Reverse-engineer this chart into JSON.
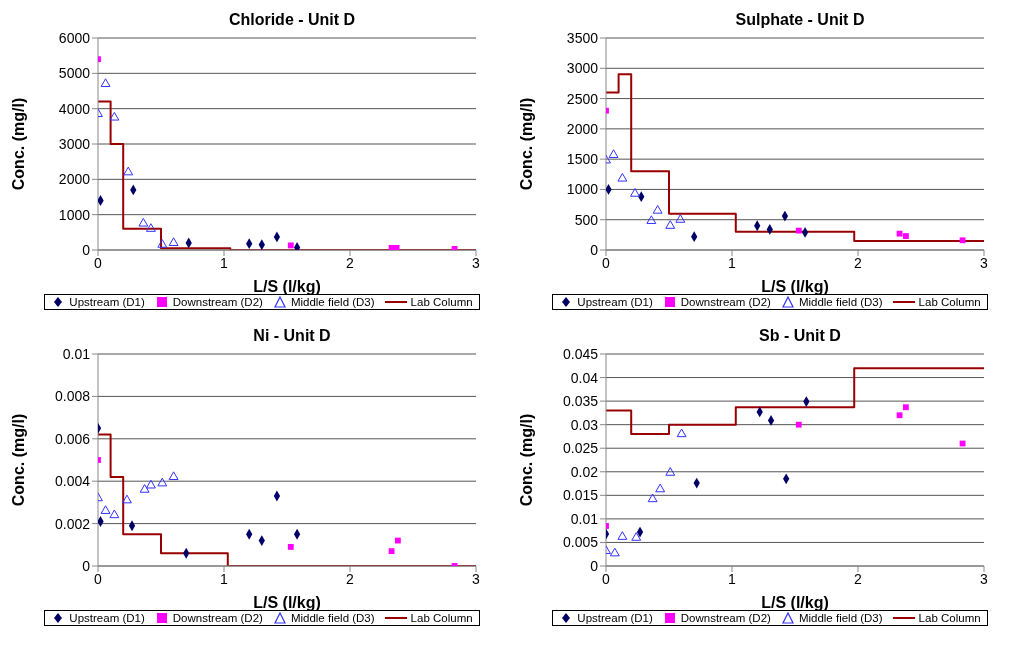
{
  "chart_data": [
    {
      "type": "scatter",
      "title": "Chloride - Unit D",
      "xlabel": "L/S (l/kg)",
      "ylabel": "Conc. (mg/l)",
      "xlim": [
        0,
        3
      ],
      "xticks": [
        0,
        1,
        2,
        3
      ],
      "ylim": [
        0,
        6000
      ],
      "yticks": [
        0,
        1000,
        2000,
        3000,
        4000,
        5000,
        6000
      ],
      "grid": "y",
      "legend": "bottom",
      "series": [
        {
          "name": "Upstream (D1)",
          "marker": "diamond",
          "color": "#000066",
          "x": [
            0.02,
            0.28,
            0.72,
            1.2,
            1.3,
            1.42,
            1.58
          ],
          "values": [
            1400,
            1700,
            200,
            180,
            150,
            370,
            70
          ]
        },
        {
          "name": "Downstream (D2)",
          "marker": "square",
          "color": "#ff00ff",
          "x": [
            0,
            1.53,
            2.33,
            2.37,
            2.83
          ],
          "values": [
            5400,
            130,
            60,
            60,
            30
          ]
        },
        {
          "name": "Middle field (D3)",
          "marker": "triangle",
          "color": "#3333ff",
          "x": [
            0,
            0.06,
            0.13,
            0.24,
            0.36,
            0.42,
            0.51,
            0.6
          ],
          "values": [
            3850,
            4700,
            3750,
            2200,
            750,
            600,
            150,
            200
          ]
        },
        {
          "name": "Lab Column",
          "type": "step",
          "marker": "none",
          "color": "#990000",
          "x": [
            0,
            0.1,
            0.2,
            0.5,
            1.05,
            3
          ],
          "values": [
            4200,
            3000,
            600,
            50,
            0,
            0
          ]
        }
      ]
    },
    {
      "type": "scatter",
      "title": "Sulphate - Unit D",
      "xlabel": "L/S (l/kg)",
      "ylabel": "Conc. (mg/l)",
      "xlim": [
        0,
        3
      ],
      "xticks": [
        0,
        1,
        2,
        3
      ],
      "ylim": [
        0,
        3500
      ],
      "yticks": [
        0,
        500,
        1000,
        1500,
        2000,
        2500,
        3000,
        3500
      ],
      "grid": "y",
      "legend": "bottom",
      "series": [
        {
          "name": "Upstream (D1)",
          "marker": "diamond",
          "color": "#000066",
          "x": [
            0.02,
            0.28,
            0.7,
            1.2,
            1.3,
            1.42,
            1.58
          ],
          "values": [
            1000,
            880,
            220,
            400,
            340,
            560,
            290
          ]
        },
        {
          "name": "Downstream (D2)",
          "marker": "square",
          "color": "#ff00ff",
          "x": [
            0,
            1.53,
            2.33,
            2.38,
            2.83
          ],
          "values": [
            2300,
            320,
            270,
            230,
            160
          ]
        },
        {
          "name": "Middle field (D3)",
          "marker": "triangle",
          "color": "#3333ff",
          "x": [
            0,
            0.06,
            0.13,
            0.23,
            0.36,
            0.41,
            0.51,
            0.59
          ],
          "values": [
            1480,
            1570,
            1180,
            930,
            480,
            650,
            400,
            500
          ]
        },
        {
          "name": "Lab Column",
          "type": "step",
          "marker": "none",
          "color": "#990000",
          "x": [
            0,
            0.1,
            0.2,
            0.5,
            1.03,
            1.97,
            3
          ],
          "values": [
            2600,
            2900,
            1300,
            600,
            300,
            150,
            150
          ]
        }
      ]
    },
    {
      "type": "scatter",
      "title": "Ni - Unit D",
      "xlabel": "L/S (l/kg)",
      "ylabel": "Conc. (mg/l)",
      "xlim": [
        0,
        3
      ],
      "xticks": [
        0,
        1,
        2,
        3
      ],
      "ylim": [
        0,
        0.01
      ],
      "yticks": [
        0,
        0.002,
        0.004,
        0.006,
        0.008,
        0.01
      ],
      "grid": "y",
      "legend": "bottom",
      "series": [
        {
          "name": "Upstream (D1)",
          "marker": "diamond",
          "color": "#000066",
          "x": [
            0,
            0.02,
            0.27,
            0.7,
            1.2,
            1.3,
            1.42,
            1.58
          ],
          "values": [
            0.0065,
            0.0021,
            0.0019,
            0.0006,
            0.0015,
            0.0012,
            0.0033,
            0.0015
          ]
        },
        {
          "name": "Downstream (D2)",
          "marker": "square",
          "color": "#ff00ff",
          "x": [
            0,
            1.53,
            2.33,
            2.38,
            2.83
          ],
          "values": [
            0.005,
            0.0009,
            0.0007,
            0.0012,
            0
          ]
        },
        {
          "name": "Middle field (D3)",
          "marker": "triangle",
          "color": "#3333ff",
          "x": [
            0,
            0.06,
            0.13,
            0.23,
            0.37,
            0.42,
            0.51,
            0.6
          ],
          "values": [
            0.0032,
            0.0026,
            0.0024,
            0.0031,
            0.0036,
            0.0038,
            0.0039,
            0.0042
          ]
        },
        {
          "name": "Lab Column",
          "type": "step",
          "marker": "none",
          "color": "#990000",
          "x": [
            0,
            0.1,
            0.2,
            0.5,
            1.03,
            3
          ],
          "values": [
            0.0062,
            0.0042,
            0.0015,
            0.0006,
            0,
            0
          ]
        }
      ]
    },
    {
      "type": "scatter",
      "title": "Sb - Unit D",
      "xlabel": "L/S (l/kg)",
      "ylabel": "Conc. (mg/l)",
      "xlim": [
        0,
        3
      ],
      "xticks": [
        0,
        1,
        2,
        3
      ],
      "ylim": [
        0,
        0.045
      ],
      "yticks": [
        0,
        0.005,
        0.01,
        0.015,
        0.02,
        0.025,
        0.03,
        0.035,
        0.04,
        0.045
      ],
      "grid": "y",
      "legend": "bottom",
      "series": [
        {
          "name": "Upstream (D1)",
          "marker": "diamond",
          "color": "#000066",
          "x": [
            0,
            0.27,
            0.72,
            1.22,
            1.31,
            1.43,
            1.59
          ],
          "values": [
            0.0068,
            0.0072,
            0.0176,
            0.0327,
            0.0309,
            0.0185,
            0.0349
          ]
        },
        {
          "name": "Downstream (D2)",
          "marker": "square",
          "color": "#ff00ff",
          "x": [
            0,
            1.53,
            2.33,
            2.38,
            2.83
          ],
          "values": [
            0.0085,
            0.03,
            0.032,
            0.0337,
            0.026
          ]
        },
        {
          "name": "Middle field (D3)",
          "marker": "triangle",
          "color": "#3333ff",
          "x": [
            0,
            0.07,
            0.13,
            0.24,
            0.37,
            0.43,
            0.51,
            0.6
          ],
          "values": [
            0.0032,
            0.0027,
            0.0062,
            0.006,
            0.0142,
            0.0163,
            0.0198,
            0.028
          ]
        },
        {
          "name": "Lab Column",
          "type": "step",
          "marker": "none",
          "color": "#990000",
          "x": [
            0,
            0.2,
            0.5,
            1.03,
            1.97,
            3
          ],
          "values": [
            0.033,
            0.028,
            0.03,
            0.0337,
            0.042,
            0.042
          ]
        }
      ]
    }
  ]
}
